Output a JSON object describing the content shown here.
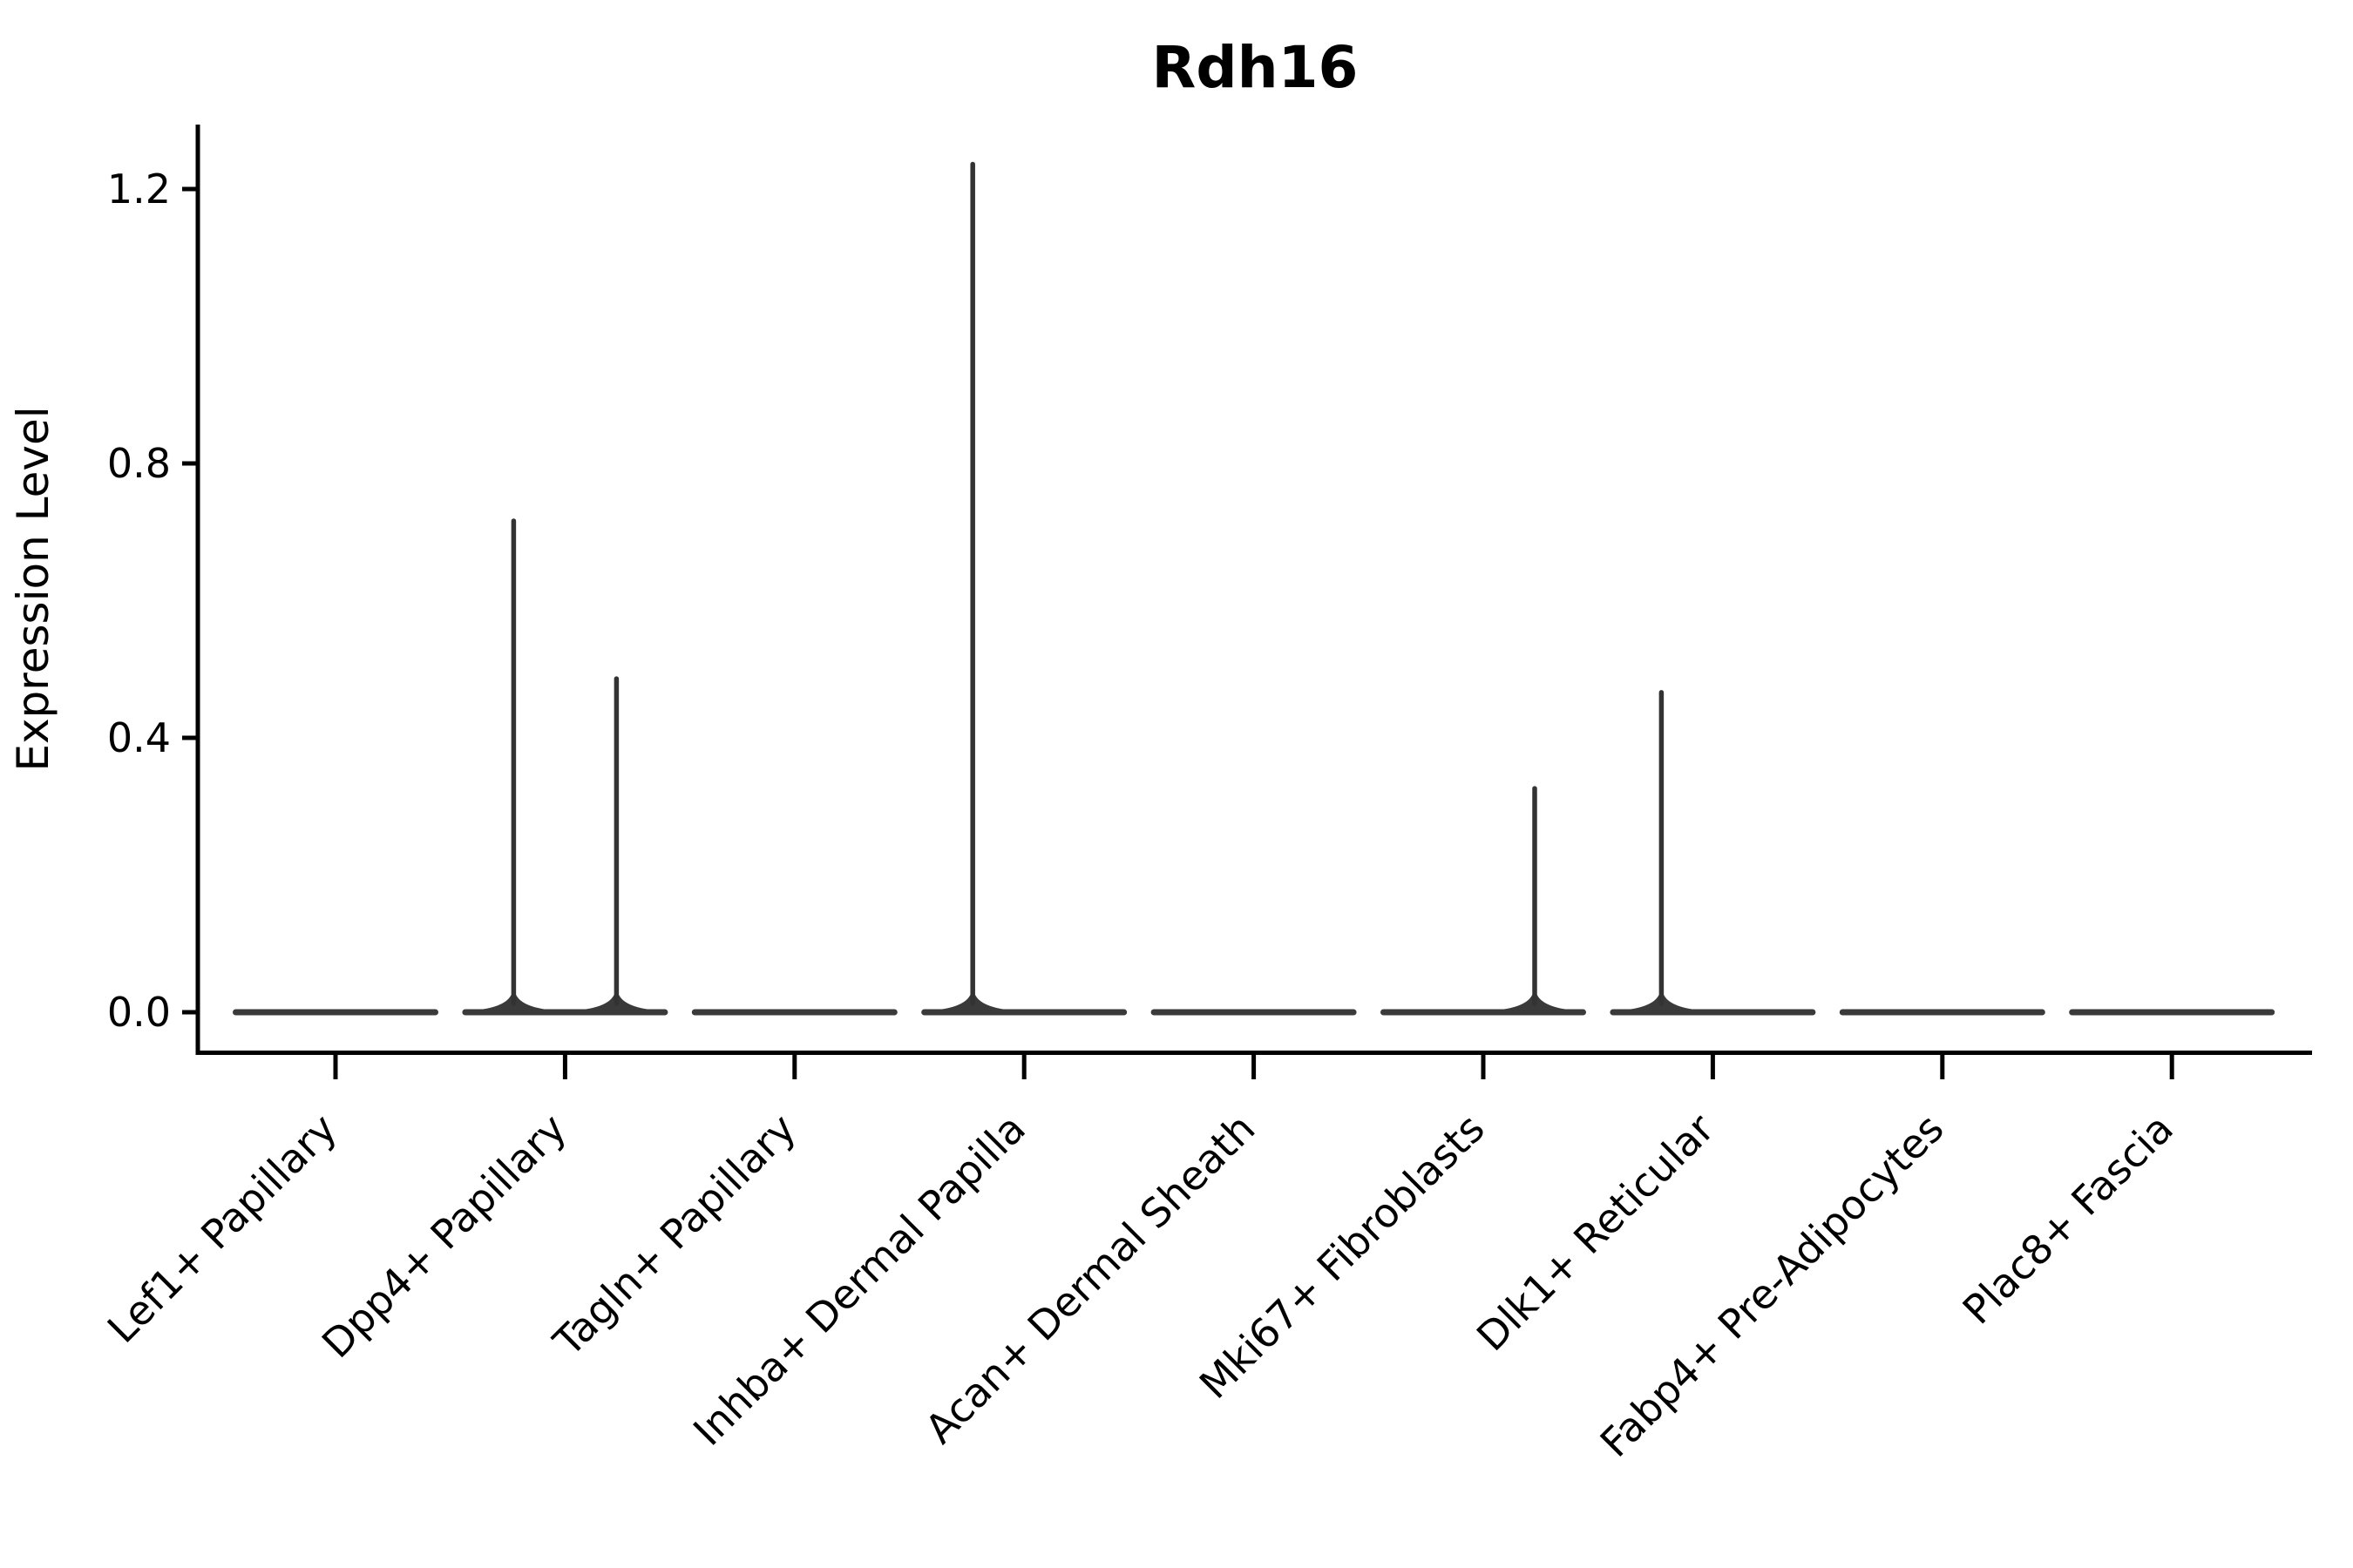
{
  "chart_data": {
    "type": "violin",
    "title": "Rdh16",
    "xlabel": "",
    "ylabel": "Expression Level",
    "legend": "none",
    "grid": false,
    "y_axis": {
      "tick_values": [
        0.0,
        0.4,
        0.8,
        1.2
      ],
      "tick_labels": [
        "0.0",
        "0.4",
        "0.8",
        "1.2"
      ],
      "ylim": [
        -0.06,
        1.3
      ]
    },
    "categories": [
      "Lef1+ Papillary",
      "Dpp4+ Papillary",
      "Tagln+ Papillary",
      "Inhba+ Dermal Papilla",
      "Acan+ Dermal Sheath",
      "Mki67+ Fibroblasts",
      "Dlk1+ Reticular",
      "Fabp4+ Pre-Adipocytes",
      "Plac8+ Fascia"
    ],
    "violins": [
      {
        "category": "Lef1+ Papillary",
        "base_value": 0.0,
        "needles": []
      },
      {
        "category": "Dpp4+ Papillary",
        "base_value": 0.0,
        "needles": [
          {
            "side": "left",
            "value": 0.72
          },
          {
            "side": "right",
            "value": 0.49
          }
        ]
      },
      {
        "category": "Tagln+ Papillary",
        "base_value": 0.0,
        "needles": []
      },
      {
        "category": "Inhba+ Dermal Papilla",
        "base_value": 0.0,
        "needles": [
          {
            "side": "left",
            "value": 1.24
          }
        ]
      },
      {
        "category": "Acan+ Dermal Sheath",
        "base_value": 0.0,
        "needles": []
      },
      {
        "category": "Mki67+ Fibroblasts",
        "base_value": 0.0,
        "needles": [
          {
            "side": "right",
            "value": 0.33
          }
        ]
      },
      {
        "category": "Dlk1+ Reticular",
        "base_value": 0.0,
        "needles": [
          {
            "side": "left",
            "value": 0.47
          }
        ]
      },
      {
        "category": "Fabp4+ Pre-Adipocytes",
        "base_value": 0.0,
        "needles": []
      },
      {
        "category": "Plac8+ Fascia",
        "base_value": 0.0,
        "needles": []
      }
    ],
    "colors": {
      "violin": "#3a3a3a",
      "needle": "#333333",
      "axis": "#000000",
      "text": "#000000",
      "background": "#ffffff"
    }
  }
}
